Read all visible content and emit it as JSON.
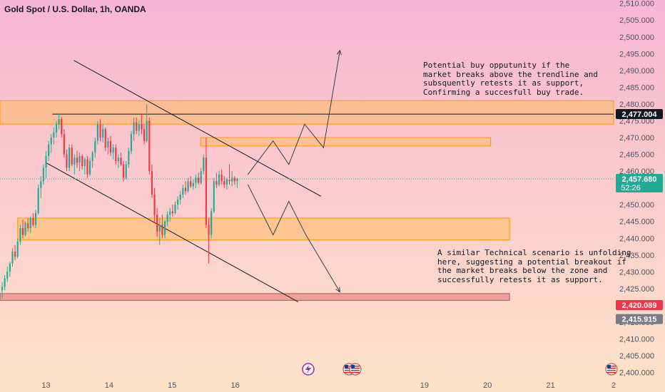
{
  "header": {
    "title": "Gold Spot / U.S. Dollar, 1h, OANDA"
  },
  "annotations": {
    "buy": "Potential buy opputunity if the\nmarket breaks above the trendline and\nsubsquently retests it as support,\nConfirming a succesfull buy trade.",
    "sell": "A similar Technical scenario is unfolding\nhere, suggesting a potential breakout if\nthe market breaks below the zone and\nsuccessfully retests it as support."
  },
  "price_badges": [
    {
      "text": "2,477.004",
      "price": 2477.004,
      "bg": "#131722",
      "fg": "#ffffff"
    },
    {
      "text": "2,457.680",
      "price": 2457.68,
      "sub": "52:26",
      "bg": "#22ab94",
      "fg": "#ffffff"
    },
    {
      "text": "2,420.089",
      "price": 2420.089,
      "bg": "#f23645",
      "fg": "#ffffff"
    },
    {
      "text": "2,415.915",
      "price": 2415.915,
      "bg": "#787b86",
      "fg": "#ffffff"
    }
  ],
  "colors": {
    "up": "#22ab94",
    "down": "#f23645",
    "line": "#131722",
    "zone_fill": "#ffb74d",
    "zone_stroke": "#ff9800",
    "support_fill": "#e57373",
    "bg_top": "#f7b6d2",
    "bg_bottom": "#fde3c8",
    "axis_text": "#50535e"
  },
  "chart_data": {
    "type": "candlestick",
    "title": "Gold Spot / U.S. Dollar, 1h, OANDA",
    "y_ticks": [
      2400,
      2405,
      2410,
      2415,
      2420,
      2425,
      2430,
      2435,
      2440,
      2445,
      2450,
      2455,
      2460,
      2465,
      2470,
      2475,
      2480,
      2485,
      2490,
      2495,
      2500,
      2505,
      2510
    ],
    "ylim": [
      2398,
      2511
    ],
    "x_ticks": [
      "13",
      "14",
      "15",
      "16",
      "19",
      "20",
      "21",
      "2"
    ],
    "x_tick_pos": [
      13,
      14,
      15,
      16,
      19,
      20,
      21,
      22
    ],
    "xlim": [
      12.27,
      22.0
    ],
    "candles_ohlc": [
      [
        2424.5,
        2427.0,
        2422.0,
        2425.5
      ],
      [
        2425.5,
        2429.0,
        2424.5,
        2428.0
      ],
      [
        2428.0,
        2431.5,
        2427.0,
        2430.0
      ],
      [
        2430.0,
        2433.0,
        2428.5,
        2432.5
      ],
      [
        2432.5,
        2437.0,
        2431.5,
        2436.0
      ],
      [
        2436.0,
        2438.0,
        2433.5,
        2434.5
      ],
      [
        2434.5,
        2440.0,
        2434.0,
        2439.0
      ],
      [
        2439.0,
        2444.0,
        2438.0,
        2443.0
      ],
      [
        2443.0,
        2445.5,
        2440.0,
        2441.0
      ],
      [
        2441.0,
        2445.0,
        2440.5,
        2444.5
      ],
      [
        2444.5,
        2446.0,
        2442.0,
        2443.0
      ],
      [
        2443.0,
        2446.5,
        2441.5,
        2446.0
      ],
      [
        2446.0,
        2447.5,
        2443.5,
        2444.0
      ],
      [
        2444.0,
        2448.5,
        2443.0,
        2447.5
      ],
      [
        2447.5,
        2456.0,
        2447.0,
        2455.0
      ],
      [
        2455.0,
        2458.5,
        2452.0,
        2457.0
      ],
      [
        2457.0,
        2462.0,
        2456.0,
        2461.0
      ],
      [
        2461.0,
        2466.0,
        2458.0,
        2464.5
      ],
      [
        2464.5,
        2469.0,
        2463.0,
        2468.0
      ],
      [
        2468.0,
        2471.0,
        2465.5,
        2470.0
      ],
      [
        2470.0,
        2473.0,
        2468.0,
        2471.5
      ],
      [
        2471.5,
        2475.0,
        2470.0,
        2474.0
      ],
      [
        2474.0,
        2477.0,
        2472.5,
        2475.5
      ],
      [
        2475.5,
        2476.0,
        2470.0,
        2471.0
      ],
      [
        2471.0,
        2472.5,
        2464.0,
        2465.0
      ],
      [
        2465.0,
        2466.5,
        2460.0,
        2461.0
      ],
      [
        2461.0,
        2468.0,
        2460.0,
        2467.0
      ],
      [
        2467.0,
        2468.0,
        2461.5,
        2462.0
      ],
      [
        2462.0,
        2465.0,
        2459.0,
        2464.0
      ],
      [
        2464.0,
        2466.0,
        2461.0,
        2462.5
      ],
      [
        2462.5,
        2465.5,
        2460.0,
        2464.5
      ],
      [
        2464.5,
        2465.0,
        2460.5,
        2461.5
      ],
      [
        2461.5,
        2464.0,
        2459.0,
        2463.5
      ],
      [
        2463.5,
        2464.5,
        2458.0,
        2459.0
      ],
      [
        2459.0,
        2464.0,
        2458.5,
        2463.0
      ],
      [
        2463.0,
        2466.0,
        2461.0,
        2465.5
      ],
      [
        2465.5,
        2470.0,
        2464.0,
        2469.0
      ],
      [
        2469.0,
        2475.0,
        2468.0,
        2474.0
      ],
      [
        2474.0,
        2475.5,
        2469.0,
        2470.0
      ],
      [
        2470.0,
        2474.0,
        2468.5,
        2472.5
      ],
      [
        2472.5,
        2473.0,
        2466.0,
        2467.0
      ],
      [
        2467.0,
        2470.0,
        2465.0,
        2469.0
      ],
      [
        2469.0,
        2470.5,
        2464.5,
        2465.5
      ],
      [
        2465.5,
        2468.0,
        2463.5,
        2467.0
      ],
      [
        2467.0,
        2468.0,
        2462.0,
        2463.0
      ],
      [
        2463.0,
        2465.0,
        2461.0,
        2464.0
      ],
      [
        2464.0,
        2465.5,
        2461.5,
        2462.0
      ],
      [
        2462.0,
        2463.0,
        2457.0,
        2458.0
      ],
      [
        2458.0,
        2463.0,
        2457.5,
        2462.0
      ],
      [
        2462.0,
        2467.0,
        2461.0,
        2466.0
      ],
      [
        2466.0,
        2472.0,
        2465.0,
        2471.0
      ],
      [
        2471.0,
        2476.0,
        2469.0,
        2474.5
      ],
      [
        2474.5,
        2476.0,
        2471.0,
        2472.0
      ],
      [
        2472.0,
        2475.0,
        2470.5,
        2474.0
      ],
      [
        2474.0,
        2477.0,
        2471.0,
        2472.5
      ],
      [
        2472.5,
        2474.0,
        2468.0,
        2469.0
      ],
      [
        2469.0,
        2480.0,
        2468.5,
        2475.0
      ],
      [
        2475.0,
        2476.0,
        2459.0,
        2460.0
      ],
      [
        2460.0,
        2462.0,
        2452.0,
        2453.0
      ],
      [
        2453.0,
        2455.0,
        2445.0,
        2447.0
      ],
      [
        2447.0,
        2449.0,
        2440.5,
        2442.0
      ],
      [
        2442.0,
        2446.0,
        2438.0,
        2444.0
      ],
      [
        2444.0,
        2447.0,
        2440.0,
        2441.0
      ],
      [
        2441.0,
        2445.5,
        2440.0,
        2445.0
      ],
      [
        2445.0,
        2448.0,
        2443.5,
        2447.0
      ],
      [
        2447.0,
        2449.0,
        2445.0,
        2448.0
      ],
      [
        2448.0,
        2450.0,
        2446.5,
        2447.5
      ],
      [
        2447.5,
        2451.0,
        2447.0,
        2450.0
      ],
      [
        2450.0,
        2452.5,
        2448.5,
        2451.5
      ],
      [
        2451.5,
        2454.0,
        2450.0,
        2453.0
      ],
      [
        2453.0,
        2456.0,
        2452.0,
        2455.0
      ],
      [
        2455.0,
        2457.0,
        2453.0,
        2454.0
      ],
      [
        2454.0,
        2458.0,
        2453.5,
        2457.0
      ],
      [
        2457.0,
        2458.5,
        2455.0,
        2455.5
      ],
      [
        2455.5,
        2457.5,
        2454.5,
        2456.5
      ],
      [
        2456.5,
        2459.0,
        2455.0,
        2458.0
      ],
      [
        2458.0,
        2459.5,
        2456.0,
        2456.5
      ],
      [
        2456.5,
        2461.0,
        2456.0,
        2460.0
      ],
      [
        2460.0,
        2465.0,
        2459.0,
        2464.0
      ],
      [
        2464.0,
        2470.0,
        2443.0,
        2444.0
      ],
      [
        2444.0,
        2446.0,
        2432.5,
        2441.0
      ],
      [
        2441.0,
        2449.0,
        2440.0,
        2448.0
      ],
      [
        2448.0,
        2458.0,
        2447.5,
        2457.0
      ],
      [
        2457.0,
        2459.5,
        2455.0,
        2456.0
      ],
      [
        2456.0,
        2460.0,
        2455.5,
        2459.0
      ],
      [
        2459.0,
        2460.5,
        2456.0,
        2457.0
      ],
      [
        2457.0,
        2458.5,
        2455.0,
        2456.0
      ],
      [
        2456.0,
        2458.0,
        2454.5,
        2457.5
      ],
      [
        2457.5,
        2462.0,
        2456.0,
        2457.0
      ],
      [
        2457.0,
        2460.0,
        2455.5,
        2458.0
      ],
      [
        2458.0,
        2458.5,
        2456.0,
        2457.0
      ],
      [
        2457.0,
        2458.0,
        2455.0,
        2457.68
      ]
    ],
    "candle_x_start": 12.27,
    "candle_x_step": 0.04095,
    "zones": [
      {
        "name": "resistance-zone",
        "x": [
          12.27,
          22.0
        ],
        "y": [
          2474.0,
          2481.0
        ]
      },
      {
        "name": "retest-zone",
        "x": [
          15.45,
          20.05
        ],
        "y": [
          2467.5,
          2470.0
        ]
      },
      {
        "name": "support-zone",
        "x": [
          12.55,
          20.35
        ],
        "y": [
          2439.5,
          2446.0
        ]
      },
      {
        "name": "bottom-support-zone",
        "x": [
          12.27,
          20.35
        ],
        "y": [
          2421.5,
          2423.5
        ]
      }
    ],
    "lines": [
      {
        "name": "upper-trendline",
        "x": [
          13.44,
          17.36
        ],
        "y": [
          2493.0,
          2452.5
        ]
      },
      {
        "name": "lower-trendline",
        "x": [
          13.0,
          17.0
        ],
        "y": [
          2462.5,
          2421.0
        ]
      },
      {
        "name": "horizontal-level",
        "x": [
          13.1,
          22.0
        ],
        "y": [
          2477.0,
          2477.0
        ]
      }
    ],
    "paths": [
      {
        "name": "bullish-projection",
        "x": [
          16.2,
          16.6,
          16.85,
          17.1,
          17.4,
          17.66
        ],
        "y": [
          2459.0,
          2469.0,
          2462.0,
          2474.0,
          2467.0,
          2496.0
        ]
      },
      {
        "name": "bearish-projection",
        "x": [
          16.2,
          16.6,
          16.85,
          17.12,
          17.66
        ],
        "y": [
          2456.0,
          2441.0,
          2451.0,
          2441.0,
          2424.0
        ]
      }
    ],
    "current_price": 2457.68,
    "grid": false
  }
}
